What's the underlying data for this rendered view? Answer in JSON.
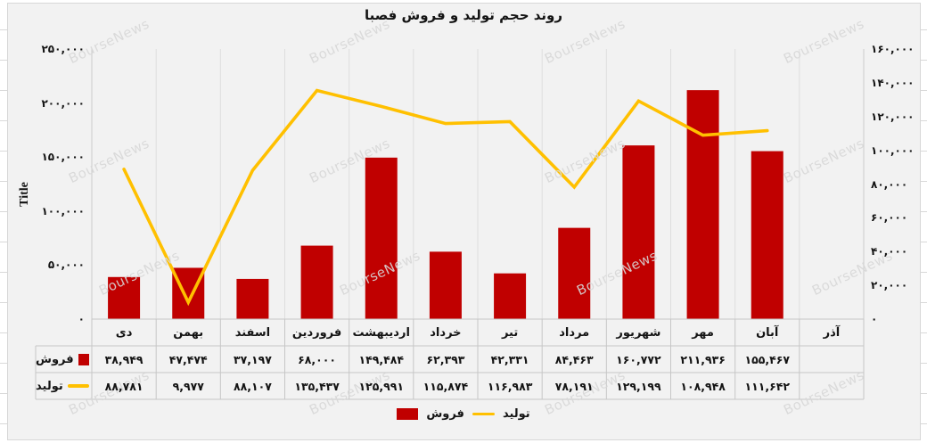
{
  "watermark": {
    "text": "BourseNews"
  },
  "chart_data": {
    "type": "bar",
    "combo": "bar+line",
    "title": "روند حجم تولید و فروش فصبا",
    "categories": [
      "دی",
      "بهمن",
      "اسفند",
      "فروردین",
      "اردیبهشت",
      "خرداد",
      "تیر",
      "مرداد",
      "شهریور",
      "مهر",
      "آبان",
      "آذر"
    ],
    "series": [
      {
        "name": "فروش",
        "type": "bar",
        "axis": "left",
        "color": "#c00000",
        "values": [
          38949,
          47474,
          37197,
          68000,
          149484,
          62393,
          42331,
          84463,
          160772,
          211936,
          155467,
          null
        ],
        "labels": [
          "۳۸,۹۴۹",
          "۴۷,۴۷۴",
          "۳۷,۱۹۷",
          "۶۸,۰۰۰",
          "۱۴۹,۴۸۴",
          "۶۲,۳۹۳",
          "۴۲,۳۳۱",
          "۸۴,۴۶۳",
          "۱۶۰,۷۷۲",
          "۲۱۱,۹۳۶",
          "۱۵۵,۴۶۷",
          ""
        ]
      },
      {
        "name": "تولید",
        "type": "line",
        "axis": "right",
        "color": "#ffc000",
        "values": [
          88781,
          9977,
          88107,
          135437,
          125991,
          115874,
          116983,
          78191,
          129199,
          108948,
          111642,
          null
        ],
        "labels": [
          "۸۸,۷۸۱",
          "۹,۹۷۷",
          "۸۸,۱۰۷",
          "۱۳۵,۴۳۷",
          "۱۲۵,۹۹۱",
          "۱۱۵,۸۷۴",
          "۱۱۶,۹۸۳",
          "۷۸,۱۹۱",
          "۱۲۹,۱۹۹",
          "۱۰۸,۹۴۸",
          "۱۱۱,۶۴۲",
          ""
        ]
      }
    ],
    "left_axis": {
      "title": "Title",
      "min": 0,
      "max": 250000,
      "step": 50000,
      "tick_labels_top_to_bottom": [
        "۲۵۰,۰۰۰",
        "۲۰۰,۰۰۰",
        "۱۵۰,۰۰۰",
        "۱۰۰,۰۰۰",
        "۵۰,۰۰۰",
        "۰"
      ]
    },
    "right_axis": {
      "min": 0,
      "max": 160000,
      "step": 20000,
      "tick_labels_top_to_bottom": [
        "۱۶۰,۰۰۰",
        "۱۴۰,۰۰۰",
        "۱۲۰,۰۰۰",
        "۱۰۰,۰۰۰",
        "۸۰,۰۰۰",
        "۶۰,۰۰۰",
        "۴۰,۰۰۰",
        "۲۰,۰۰۰",
        "۰"
      ]
    },
    "legend_position": "bottom",
    "data_table": true,
    "grid": "vertical-only",
    "colors": {
      "plot_bg": "#f2f2f2",
      "gridline": "#dedede",
      "table_border": "#c6c6c6",
      "axis_edge": "#cccccc"
    }
  }
}
